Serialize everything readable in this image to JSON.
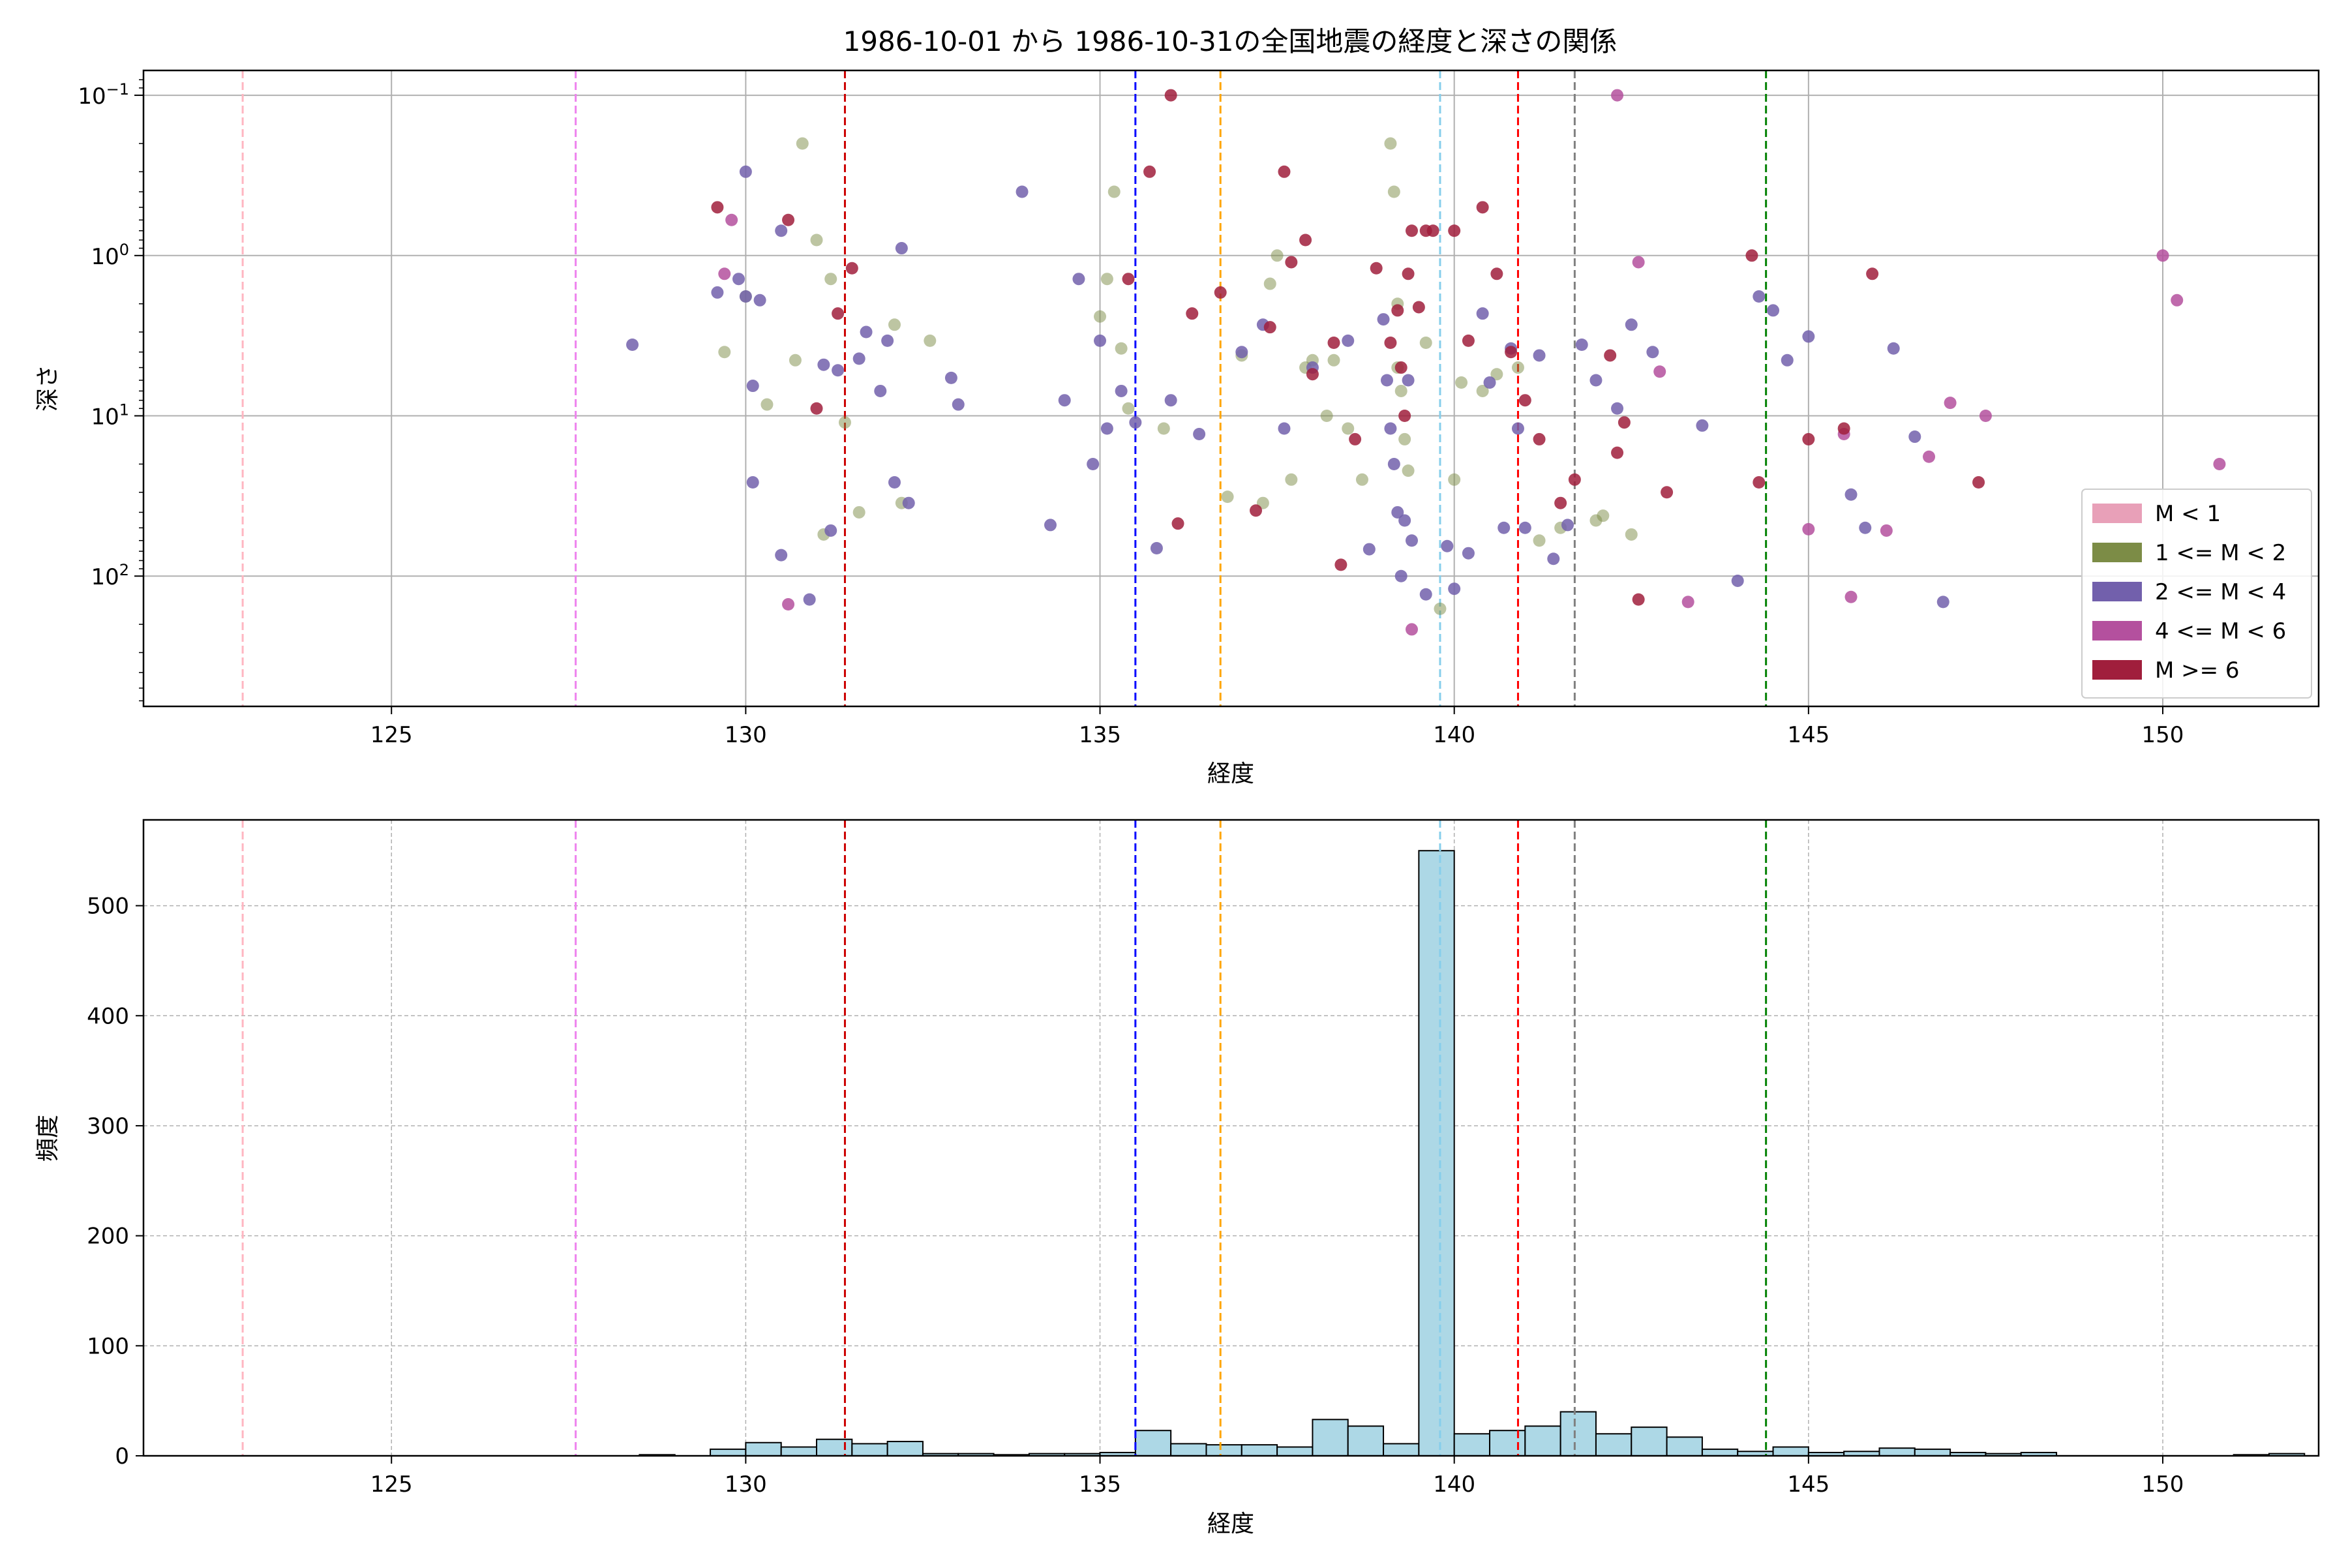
{
  "figure_title": "1986-10-01 から 1986-10-31の全国地震の経度と深さの関係",
  "chart_data": [
    {
      "type": "scatter",
      "xlabel": "経度",
      "ylabel": "深さ",
      "xlim": [
        121.5,
        152.2
      ],
      "ylim": [
        650,
        0.07
      ],
      "yscale": "log",
      "y_inverted": true,
      "xticks": [
        125,
        130,
        135,
        140,
        145,
        150
      ],
      "yticks": [
        {
          "value": 0.1,
          "base": "10",
          "exp": "−1"
        },
        {
          "value": 1,
          "base": "10",
          "exp": "0"
        },
        {
          "value": 10,
          "base": "10",
          "exp": "1"
        },
        {
          "value": 100,
          "base": "10",
          "exp": "2"
        }
      ],
      "grid": true,
      "legend_position": "lower-right",
      "legend": [
        {
          "label": "M < 1",
          "color": "#e8a0b8"
        },
        {
          "label": "1 <= M < 2",
          "color": "#7c8c46"
        },
        {
          "label": "2 <= M < 4",
          "color": "#7260ac"
        },
        {
          "label": "4 <= M < 6",
          "color": "#b4509e"
        },
        {
          "label": "M >= 6",
          "color": "#a01e3c"
        }
      ],
      "vlines": [
        {
          "x": 122.9,
          "color": "#ffb6c1"
        },
        {
          "x": 127.6,
          "color": "#ee82ee"
        },
        {
          "x": 131.4,
          "color": "#cc0000"
        },
        {
          "x": 135.5,
          "color": "#0000ff"
        },
        {
          "x": 136.7,
          "color": "#ffa500"
        },
        {
          "x": 139.8,
          "color": "#87ceeb"
        },
        {
          "x": 140.9,
          "color": "#ff0000"
        },
        {
          "x": 141.7,
          "color": "#808080"
        },
        {
          "x": 144.4,
          "color": "#008000"
        }
      ],
      "series": [
        {
          "name": "1 <= M < 2",
          "color": "#7c8c46",
          "points": [
            [
              129.7,
              4
            ],
            [
              130.0,
              1.8
            ],
            [
              130.3,
              8.5
            ],
            [
              130.7,
              4.5
            ],
            [
              130.8,
              0.2
            ],
            [
              131.0,
              0.8
            ],
            [
              131.1,
              55
            ],
            [
              131.2,
              1.4
            ],
            [
              131.4,
              11
            ],
            [
              131.6,
              40
            ],
            [
              132.1,
              2.7
            ],
            [
              132.2,
              35
            ],
            [
              132.6,
              3.4
            ],
            [
              135.0,
              2.4
            ],
            [
              135.1,
              1.4
            ],
            [
              135.2,
              0.4
            ],
            [
              135.3,
              3.8
            ],
            [
              135.4,
              9
            ],
            [
              135.9,
              12
            ],
            [
              136.8,
              32
            ],
            [
              137.0,
              4.2
            ],
            [
              137.3,
              35
            ],
            [
              137.4,
              1.5
            ],
            [
              137.5,
              1.0
            ],
            [
              137.7,
              25
            ],
            [
              137.9,
              5
            ],
            [
              138.0,
              4.5
            ],
            [
              138.2,
              10
            ],
            [
              138.3,
              4.5
            ],
            [
              138.5,
              12
            ],
            [
              138.7,
              25
            ],
            [
              139.1,
              0.2
            ],
            [
              139.15,
              0.4
            ],
            [
              139.2,
              2
            ],
            [
              139.2,
              5
            ],
            [
              139.25,
              7
            ],
            [
              139.3,
              14
            ],
            [
              139.35,
              22
            ],
            [
              139.6,
              3.5
            ],
            [
              139.8,
              160
            ],
            [
              140.0,
              25
            ],
            [
              140.1,
              6.2
            ],
            [
              140.4,
              7
            ],
            [
              140.6,
              5.5
            ],
            [
              140.9,
              5
            ],
            [
              141.2,
              60
            ],
            [
              141.5,
              50
            ],
            [
              142.0,
              45
            ],
            [
              142.1,
              42
            ],
            [
              142.5,
              55
            ]
          ]
        },
        {
          "name": "2 <= M < 4",
          "color": "#7260ac",
          "points": [
            [
              128.4,
              3.6
            ],
            [
              129.6,
              1.7
            ],
            [
              129.9,
              1.4
            ],
            [
              130.0,
              0.3
            ],
            [
              130.0,
              1.8
            ],
            [
              130.1,
              6.5
            ],
            [
              130.1,
              26
            ],
            [
              130.2,
              1.9
            ],
            [
              130.5,
              0.7
            ],
            [
              130.5,
              74
            ],
            [
              130.9,
              140
            ],
            [
              131.1,
              4.8
            ],
            [
              131.2,
              52
            ],
            [
              131.3,
              5.2
            ],
            [
              131.6,
              4.4
            ],
            [
              131.7,
              3
            ],
            [
              131.9,
              7
            ],
            [
              132.0,
              3.4
            ],
            [
              132.1,
              26
            ],
            [
              132.2,
              0.9
            ],
            [
              132.3,
              35
            ],
            [
              132.9,
              5.8
            ],
            [
              133.0,
              8.5
            ],
            [
              133.9,
              0.4
            ],
            [
              134.3,
              48
            ],
            [
              134.5,
              8
            ],
            [
              134.7,
              1.4
            ],
            [
              134.9,
              20
            ],
            [
              135.0,
              3.4
            ],
            [
              135.1,
              12
            ],
            [
              135.3,
              7
            ],
            [
              135.5,
              11
            ],
            [
              135.8,
              67
            ],
            [
              136.0,
              8
            ],
            [
              136.4,
              13
            ],
            [
              137.0,
              4
            ],
            [
              137.3,
              2.7
            ],
            [
              137.6,
              12
            ],
            [
              138.0,
              5
            ],
            [
              138.5,
              3.4
            ],
            [
              138.8,
              68
            ],
            [
              139.0,
              2.5
            ],
            [
              139.05,
              6
            ],
            [
              139.1,
              12
            ],
            [
              139.15,
              20
            ],
            [
              139.2,
              40
            ],
            [
              139.25,
              100
            ],
            [
              139.3,
              45
            ],
            [
              139.35,
              6
            ],
            [
              139.4,
              60
            ],
            [
              139.6,
              130
            ],
            [
              139.9,
              65
            ],
            [
              140.0,
              120
            ],
            [
              140.2,
              72
            ],
            [
              140.4,
              2.3
            ],
            [
              140.5,
              6.2
            ],
            [
              140.7,
              50
            ],
            [
              140.8,
              3.8
            ],
            [
              140.9,
              12
            ],
            [
              141.0,
              50
            ],
            [
              141.2,
              4.2
            ],
            [
              141.4,
              78
            ],
            [
              141.6,
              48
            ],
            [
              141.8,
              3.6
            ],
            [
              142.0,
              6
            ],
            [
              142.3,
              9
            ],
            [
              142.5,
              2.7
            ],
            [
              142.8,
              4
            ],
            [
              143.5,
              11.5
            ],
            [
              144.0,
              107
            ],
            [
              144.3,
              1.8
            ],
            [
              144.5,
              2.2
            ],
            [
              144.7,
              4.5
            ],
            [
              145.0,
              3.2
            ],
            [
              145.6,
              31
            ],
            [
              145.8,
              50
            ],
            [
              146.2,
              3.8
            ],
            [
              146.5,
              13.5
            ],
            [
              146.9,
              145
            ]
          ]
        },
        {
          "name": "4 <= M < 6",
          "color": "#b4509e",
          "points": [
            [
              129.7,
              1.3
            ],
            [
              129.8,
              0.6
            ],
            [
              130.6,
              150
            ],
            [
              139.4,
              215
            ],
            [
              142.3,
              0.1
            ],
            [
              142.6,
              1.1
            ],
            [
              142.9,
              5.3
            ],
            [
              143.3,
              145
            ],
            [
              145.0,
              51
            ],
            [
              145.5,
              13
            ],
            [
              145.6,
              135
            ],
            [
              146.1,
              52
            ],
            [
              146.7,
              18
            ],
            [
              147.0,
              8.3
            ],
            [
              147.5,
              10
            ],
            [
              150.0,
              1
            ],
            [
              150.2,
              1.9
            ],
            [
              150.8,
              20
            ]
          ]
        },
        {
          "name": "M >= 6",
          "color": "#a01e3c",
          "points": [
            [
              129.6,
              0.5
            ],
            [
              130.6,
              0.6
            ],
            [
              131.0,
              9
            ],
            [
              131.3,
              2.3
            ],
            [
              131.5,
              1.2
            ],
            [
              135.4,
              1.4
            ],
            [
              135.7,
              0.3
            ],
            [
              136.0,
              0.1
            ],
            [
              136.1,
              47
            ],
            [
              136.3,
              2.3
            ],
            [
              136.7,
              1.7
            ],
            [
              137.2,
              39
            ],
            [
              137.4,
              2.8
            ],
            [
              137.6,
              0.3
            ],
            [
              137.7,
              1.1
            ],
            [
              137.9,
              0.8
            ],
            [
              138.0,
              5.5
            ],
            [
              138.3,
              3.5
            ],
            [
              138.4,
              85
            ],
            [
              138.6,
              14
            ],
            [
              138.9,
              1.2
            ],
            [
              139.1,
              3.5
            ],
            [
              139.2,
              2.2
            ],
            [
              139.25,
              5
            ],
            [
              139.3,
              10
            ],
            [
              139.35,
              1.3
            ],
            [
              139.4,
              0.7
            ],
            [
              139.5,
              2.1
            ],
            [
              139.6,
              0.7
            ],
            [
              139.7,
              0.7
            ],
            [
              140.0,
              0.7
            ],
            [
              140.2,
              3.4
            ],
            [
              140.4,
              0.5
            ],
            [
              140.6,
              1.3
            ],
            [
              140.8,
              4
            ],
            [
              141.0,
              8
            ],
            [
              141.2,
              14
            ],
            [
              141.5,
              35
            ],
            [
              141.7,
              25
            ],
            [
              142.2,
              4.2
            ],
            [
              142.3,
              17
            ],
            [
              142.4,
              11
            ],
            [
              142.6,
              140
            ],
            [
              143.0,
              30
            ],
            [
              144.2,
              1
            ],
            [
              144.3,
              26
            ],
            [
              145.0,
              14
            ],
            [
              145.5,
              12
            ],
            [
              145.9,
              1.3
            ],
            [
              147.4,
              26
            ]
          ]
        }
      ]
    },
    {
      "type": "bar",
      "xlabel": "経度",
      "ylabel": "頻度",
      "xlim": [
        121.5,
        152.2
      ],
      "ylim": [
        0,
        578
      ],
      "yticks": [
        0,
        100,
        200,
        300,
        400,
        500
      ],
      "xticks": [
        125,
        130,
        135,
        140,
        145,
        150
      ],
      "grid": true,
      "bin_start": 128.5,
      "bin_width": 0.5,
      "counts": [
        1,
        0,
        6,
        12,
        8,
        15,
        11,
        13,
        2,
        2,
        1,
        2,
        2,
        3,
        23,
        11,
        10,
        10,
        8,
        33,
        27,
        11,
        550,
        20,
        23,
        27,
        40,
        20,
        26,
        17,
        6,
        4,
        8,
        3,
        4,
        7,
        6,
        3,
        2,
        3,
        0,
        0,
        0,
        0,
        0,
        1,
        2,
        0,
        0
      ],
      "bar_color": "#add8e6",
      "vlines": [
        {
          "x": 122.9,
          "color": "#ffb6c1"
        },
        {
          "x": 127.6,
          "color": "#ee82ee"
        },
        {
          "x": 131.4,
          "color": "#cc0000"
        },
        {
          "x": 135.5,
          "color": "#0000ff"
        },
        {
          "x": 136.7,
          "color": "#ffa500"
        },
        {
          "x": 139.8,
          "color": "#87ceeb"
        },
        {
          "x": 140.9,
          "color": "#ff0000"
        },
        {
          "x": 141.7,
          "color": "#808080"
        },
        {
          "x": 144.4,
          "color": "#008000"
        }
      ]
    }
  ]
}
